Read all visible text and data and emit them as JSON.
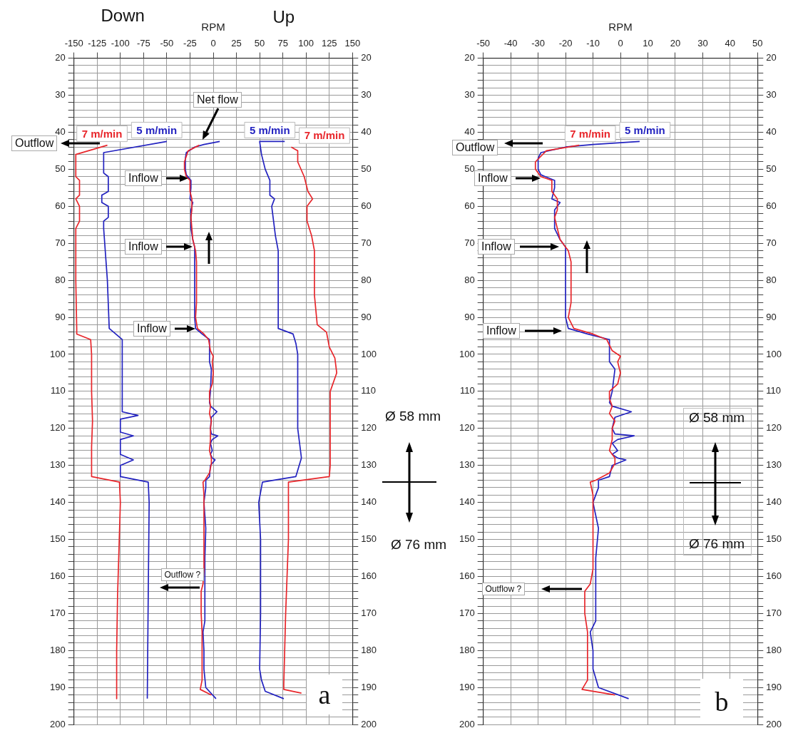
{
  "chart_data": [
    {
      "type": "line",
      "xlabel": "RPM",
      "xlim": [
        -150,
        150
      ],
      "xticks": [
        -150,
        -125,
        -100,
        -75,
        -50,
        -25,
        0,
        25,
        50,
        75,
        100,
        125,
        150
      ],
      "ylim": [
        200,
        20
      ],
      "yticks": [
        20,
        {
          "value": 22,
          "label": null
        },
        {
          "value": 24,
          "label": null
        },
        {
          "value": 26,
          "label": null
        },
        {
          "value": 28,
          "label": null
        },
        30,
        {
          "value": 32,
          "label": null
        },
        {
          "value": 34,
          "label": null
        },
        {
          "value": 36,
          "label": null
        },
        {
          "value": 38,
          "label": null
        },
        40,
        {
          "value": 42,
          "label": null
        },
        {
          "value": 44,
          "label": null
        },
        {
          "value": 46,
          "label": null
        },
        {
          "value": 48,
          "label": null
        },
        50,
        {
          "value": 52,
          "label": null
        },
        {
          "value": 54,
          "label": null
        },
        {
          "value": 56,
          "label": null
        },
        {
          "value": 58,
          "label": null
        },
        60,
        {
          "value": 62,
          "label": null
        },
        {
          "value": 64,
          "label": null
        },
        {
          "value": 66,
          "label": null
        },
        {
          "value": 68,
          "label": null
        },
        70,
        {
          "value": 72,
          "label": null
        },
        {
          "value": 74,
          "label": null
        },
        {
          "value": 76,
          "label": null
        },
        {
          "value": 78,
          "label": null
        },
        80,
        {
          "value": 82,
          "label": null
        },
        {
          "value": 84,
          "label": null
        },
        {
          "value": 86,
          "label": null
        },
        {
          "value": 88,
          "label": null
        },
        90,
        {
          "value": 92,
          "label": null
        },
        {
          "value": 94,
          "label": null
        },
        {
          "value": 96,
          "label": null
        },
        {
          "value": 98,
          "label": null
        },
        100,
        {
          "value": 102,
          "label": null
        },
        {
          "value": 104,
          "label": null
        },
        {
          "value": 106,
          "label": null
        },
        {
          "value": 108,
          "label": null
        },
        110,
        {
          "value": 112,
          "label": null
        },
        {
          "value": 114,
          "label": null
        },
        {
          "value": 116,
          "label": null
        },
        {
          "value": 118,
          "label": null
        },
        120,
        {
          "value": 122,
          "label": null
        },
        {
          "value": 124,
          "label": null
        },
        {
          "value": 126,
          "label": null
        },
        {
          "value": 128,
          "label": null
        },
        130,
        {
          "value": 132,
          "label": null
        },
        {
          "value": 134,
          "label": null
        },
        {
          "value": 136,
          "label": null
        },
        {
          "value": 138,
          "label": null
        },
        140,
        {
          "value": 142,
          "label": null
        },
        {
          "value": 144,
          "label": null
        },
        {
          "value": 146,
          "label": null
        },
        {
          "value": 148,
          "label": null
        },
        150,
        {
          "value": 152,
          "label": null
        },
        {
          "value": 154,
          "label": null
        },
        {
          "value": 156,
          "label": null
        },
        {
          "value": 158,
          "label": null
        },
        160,
        {
          "value": 162,
          "label": null
        },
        {
          "value": 164,
          "label": null
        },
        {
          "value": 166,
          "label": null
        },
        {
          "value": 168,
          "label": null
        },
        170,
        {
          "value": 172,
          "label": null
        },
        {
          "value": 174,
          "label": null
        },
        {
          "value": 176,
          "label": null
        },
        {
          "value": 178,
          "label": null
        },
        180,
        {
          "value": 182,
          "label": null
        },
        {
          "value": 184,
          "label": null
        },
        {
          "value": 186,
          "label": null
        },
        {
          "value": 188,
          "label": null
        },
        190,
        {
          "value": 192,
          "label": null
        },
        {
          "value": 194,
          "label": null
        },
        {
          "value": 196,
          "label": null
        },
        {
          "value": 198,
          "label": null
        },
        200
      ],
      "y2lim": [
        200,
        20
      ],
      "y2ticks": [
        20,
        {
          "value": 22,
          "label": null
        },
        {
          "value": 24,
          "label": null
        },
        {
          "value": 26,
          "label": null
        },
        {
          "value": 28,
          "label": null
        },
        30,
        {
          "value": 32,
          "label": null
        },
        {
          "value": 34,
          "label": null
        },
        {
          "value": 36,
          "label": null
        },
        {
          "value": 38,
          "label": null
        },
        40,
        {
          "value": 42,
          "label": null
        },
        {
          "value": 44,
          "label": null
        },
        {
          "value": 46,
          "label": null
        },
        {
          "value": 48,
          "label": null
        },
        50,
        {
          "value": 52,
          "label": null
        },
        {
          "value": 54,
          "label": null
        },
        {
          "value": 56,
          "label": null
        },
        {
          "value": 58,
          "label": null
        },
        60,
        {
          "value": 62,
          "label": null
        },
        {
          "value": 64,
          "label": null
        },
        {
          "value": 66,
          "label": null
        },
        {
          "value": 68,
          "label": null
        },
        70,
        {
          "value": 72,
          "label": null
        },
        {
          "value": 74,
          "label": null
        },
        {
          "value": 76,
          "label": null
        },
        {
          "value": 78,
          "label": null
        },
        80,
        {
          "value": 82,
          "label": null
        },
        {
          "value": 84,
          "label": null
        },
        {
          "value": 86,
          "label": null
        },
        {
          "value": 88,
          "label": null
        },
        90,
        {
          "value": 92,
          "label": null
        },
        {
          "value": 94,
          "label": null
        },
        {
          "value": 96,
          "label": null
        },
        {
          "value": 98,
          "label": null
        },
        100,
        {
          "value": 102,
          "label": null
        },
        {
          "value": 104,
          "label": null
        },
        {
          "value": 106,
          "label": null
        },
        {
          "value": 108,
          "label": null
        },
        110,
        {
          "value": 112,
          "label": null
        },
        {
          "value": 114,
          "label": null
        },
        {
          "value": 116,
          "label": null
        },
        {
          "value": 118,
          "label": null
        },
        120,
        {
          "value": 122,
          "label": null
        },
        {
          "value": 124,
          "label": null
        },
        {
          "value": 126,
          "label": null
        },
        {
          "value": 128,
          "label": null
        },
        130,
        {
          "value": 132,
          "label": null
        },
        {
          "value": 134,
          "label": null
        },
        {
          "value": 136,
          "label": null
        },
        {
          "value": 138,
          "label": null
        },
        140,
        {
          "value": 142,
          "label": null
        },
        {
          "value": 144,
          "label": null
        },
        {
          "value": 146,
          "label": null
        },
        {
          "value": 148,
          "label": null
        },
        150,
        {
          "value": 152,
          "label": null
        },
        {
          "value": 154,
          "label": null
        },
        {
          "value": 156,
          "label": null
        },
        {
          "value": 158,
          "label": null
        },
        160,
        {
          "value": 162,
          "label": null
        },
        {
          "value": 164,
          "label": null
        },
        {
          "value": 166,
          "label": null
        },
        {
          "value": 168,
          "label": null
        },
        170,
        {
          "value": 172,
          "label": null
        },
        {
          "value": 174,
          "label": null
        },
        {
          "value": 176,
          "label": null
        },
        {
          "value": 178,
          "label": null
        },
        180,
        {
          "value": 182,
          "label": null
        },
        {
          "value": 184,
          "label": null
        },
        {
          "value": 186,
          "label": null
        },
        {
          "value": 188,
          "label": null
        },
        190,
        {
          "value": 192,
          "label": null
        },
        {
          "value": 194,
          "label": null
        },
        {
          "value": 196,
          "label": null
        },
        {
          "value": 198,
          "label": null
        },
        200
      ],
      "grid": true,
      "series": [
        {
          "name": "7 m/min",
          "color": "#e8262b",
          "x": [
            -114,
            -148,
            -148,
            -144,
            -144,
            -148,
            -144,
            -144,
            -148,
            -148,
            -147,
            -147,
            -132,
            -131,
            -131,
            -130,
            -131,
            -131,
            -101,
            -100,
            -103,
            -104,
            -104
          ],
          "values": [
            43.5,
            46,
            52,
            53,
            57,
            58,
            60,
            64,
            66,
            80,
            93,
            94.5,
            96,
            100,
            110,
            118,
            125,
            133,
            134.5,
            140,
            165,
            180,
            193
          ]
        },
        {
          "name": "5 m/min",
          "color": "#2323c0",
          "x": [
            -50,
            -118,
            -118,
            -113,
            -113,
            -120,
            -120,
            -113,
            -113,
            -118,
            -118,
            -114,
            -112,
            -98,
            -98,
            -81,
            -100,
            -100,
            -86,
            -100,
            -100,
            -86,
            -100,
            -100,
            -70,
            -69,
            -70,
            -71
          ],
          "values": [
            42.5,
            45.5,
            51,
            52,
            56,
            57,
            59,
            60,
            63,
            64,
            66,
            80,
            93,
            96,
            115.5,
            116.5,
            117.5,
            121,
            122,
            123,
            127,
            128.5,
            130,
            133,
            134.5,
            140,
            165,
            193
          ]
        },
        {
          "color": "#e8262b",
          "x": [
            -15,
            -27,
            -31,
            -31,
            -29,
            -25,
            -25,
            -23,
            -23,
            -24,
            -23,
            -22,
            -20,
            -19,
            -18,
            -18,
            -19,
            -17,
            -10,
            -5,
            -3,
            0,
            -1,
            0,
            -1,
            -4,
            -4,
            -3,
            -4,
            -2,
            -3,
            -3,
            -4,
            -2,
            -2,
            -4,
            -9,
            -11,
            -10,
            -10,
            -11,
            -13,
            -13,
            -12,
            -12,
            -14,
            -2
          ],
          "values": [
            43.5,
            45,
            48,
            50,
            52,
            53,
            56,
            58,
            61,
            63,
            66,
            69,
            71,
            72,
            75,
            86,
            90,
            93,
            94.5,
            96,
            99,
            100.5,
            102,
            105,
            108,
            110,
            112,
            114,
            116,
            118,
            120,
            123,
            126,
            128,
            129.5,
            132,
            134,
            134.5,
            138,
            158,
            162,
            164,
            170,
            175,
            188,
            190.5,
            192
          ]
        },
        {
          "color": "#2323c0",
          "x": [
            7,
            -10,
            -20,
            -29,
            -30,
            -30,
            -29,
            -24,
            -24,
            -25,
            -22,
            -24,
            -24,
            -22,
            -20,
            -20,
            -19,
            -12,
            -4,
            -4,
            -2,
            -3,
            -4,
            -3,
            4,
            -2,
            -3,
            -2,
            5,
            -1,
            -3,
            -1,
            -3,
            -1,
            2,
            -3,
            -4,
            -8,
            -8,
            -10,
            -8,
            -9,
            -9,
            -11,
            -10,
            -10,
            -8,
            3
          ],
          "values": [
            42.5,
            43.3,
            44,
            45.5,
            47,
            50,
            51.5,
            53,
            55,
            58,
            59,
            61,
            66,
            69,
            71,
            90,
            93,
            94.5,
            96,
            102,
            104,
            110,
            113,
            114,
            115.5,
            117,
            120,
            121.5,
            122,
            123,
            124,
            126,
            127,
            128,
            128.5,
            130,
            133,
            134,
            136,
            140,
            147,
            155,
            172,
            175,
            180,
            185,
            190,
            193
          ]
        },
        {
          "name": "5 m/min",
          "color": "#2323c0",
          "x": [
            77,
            50,
            52,
            56,
            61,
            61,
            66,
            63,
            65,
            67,
            70,
            70,
            86,
            89,
            91,
            91,
            95,
            89,
            53,
            49,
            51,
            51,
            50,
            52,
            56,
            76
          ],
          "values": [
            42.5,
            42.5,
            46,
            50,
            53,
            57,
            58,
            60,
            64,
            68,
            72,
            93,
            94.5,
            97,
            100,
            120,
            128,
            133,
            134.5,
            140,
            150,
            170,
            185,
            188,
            191,
            193
          ]
        },
        {
          "name": "7 m/min",
          "color": "#e8262b",
          "x": [
            84,
            91,
            91,
            98,
            102,
            107,
            101,
            101,
            106,
            109,
            109,
            112,
            122,
            125,
            131,
            133,
            126,
            126,
            125,
            81,
            81,
            78,
            76,
            76,
            95
          ],
          "values": [
            44,
            45,
            48,
            52,
            56,
            58,
            60,
            64,
            68,
            72,
            84,
            92,
            94,
            98,
            101,
            105,
            110,
            130,
            133,
            134.5,
            150,
            170,
            189,
            190.5,
            191.5
          ]
        }
      ],
      "annotations": [
        "Down",
        "Up",
        "Net flow",
        "Outflow",
        "Inflow",
        "Inflow",
        "Inflow",
        "Outflow ?",
        "Ø 58 mm",
        "Ø 76 mm",
        "a"
      ]
    },
    {
      "type": "line",
      "xlabel": "RPM",
      "xlim": [
        -50,
        50
      ],
      "xticks": [
        -50,
        -40,
        -30,
        -20,
        -10,
        0,
        10,
        20,
        30,
        40,
        50
      ],
      "ylim": [
        200,
        20
      ],
      "yticks": [
        20,
        {
          "value": 22,
          "label": null
        },
        {
          "value": 24,
          "label": null
        },
        {
          "value": 26,
          "label": null
        },
        {
          "value": 28,
          "label": null
        },
        30,
        {
          "value": 32,
          "label": null
        },
        {
          "value": 34,
          "label": null
        },
        {
          "value": 36,
          "label": null
        },
        {
          "value": 38,
          "label": null
        },
        40,
        {
          "value": 42,
          "label": null
        },
        {
          "value": 44,
          "label": null
        },
        {
          "value": 46,
          "label": null
        },
        {
          "value": 48,
          "label": null
        },
        50,
        {
          "value": 52,
          "label": null
        },
        {
          "value": 54,
          "label": null
        },
        {
          "value": 56,
          "label": null
        },
        {
          "value": 58,
          "label": null
        },
        60,
        {
          "value": 62,
          "label": null
        },
        {
          "value": 64,
          "label": null
        },
        {
          "value": 66,
          "label": null
        },
        {
          "value": 68,
          "label": null
        },
        70,
        {
          "value": 72,
          "label": null
        },
        {
          "value": 74,
          "label": null
        },
        {
          "value": 76,
          "label": null
        },
        {
          "value": 78,
          "label": null
        },
        80,
        {
          "value": 82,
          "label": null
        },
        {
          "value": 84,
          "label": null
        },
        {
          "value": 86,
          "label": null
        },
        {
          "value": 88,
          "label": null
        },
        90,
        {
          "value": 92,
          "label": null
        },
        {
          "value": 94,
          "label": null
        },
        {
          "value": 96,
          "label": null
        },
        {
          "value": 98,
          "label": null
        },
        100,
        {
          "value": 102,
          "label": null
        },
        {
          "value": 104,
          "label": null
        },
        {
          "value": 106,
          "label": null
        },
        {
          "value": 108,
          "label": null
        },
        110,
        {
          "value": 112,
          "label": null
        },
        {
          "value": 114,
          "label": null
        },
        {
          "value": 116,
          "label": null
        },
        {
          "value": 118,
          "label": null
        },
        120,
        {
          "value": 122,
          "label": null
        },
        {
          "value": 124,
          "label": null
        },
        {
          "value": 126,
          "label": null
        },
        {
          "value": 128,
          "label": null
        },
        130,
        {
          "value": 132,
          "label": null
        },
        {
          "value": 134,
          "label": null
        },
        {
          "value": 136,
          "label": null
        },
        {
          "value": 138,
          "label": null
        },
        140,
        {
          "value": 142,
          "label": null
        },
        {
          "value": 144,
          "label": null
        },
        {
          "value": 146,
          "label": null
        },
        {
          "value": 148,
          "label": null
        },
        150,
        {
          "value": 152,
          "label": null
        },
        {
          "value": 154,
          "label": null
        },
        {
          "value": 156,
          "label": null
        },
        {
          "value": 158,
          "label": null
        },
        160,
        {
          "value": 162,
          "label": null
        },
        {
          "value": 164,
          "label": null
        },
        {
          "value": 166,
          "label": null
        },
        {
          "value": 168,
          "label": null
        },
        170,
        {
          "value": 172,
          "label": null
        },
        {
          "value": 174,
          "label": null
        },
        {
          "value": 176,
          "label": null
        },
        {
          "value": 178,
          "label": null
        },
        180,
        {
          "value": 182,
          "label": null
        },
        {
          "value": 184,
          "label": null
        },
        {
          "value": 186,
          "label": null
        },
        {
          "value": 188,
          "label": null
        },
        190,
        {
          "value": 192,
          "label": null
        },
        {
          "value": 194,
          "label": null
        },
        {
          "value": 196,
          "label": null
        },
        {
          "value": 198,
          "label": null
        },
        200
      ],
      "y2lim": [
        200,
        20
      ],
      "y2ticks": [
        20,
        {
          "value": 22,
          "label": null
        },
        {
          "value": 24,
          "label": null
        },
        {
          "value": 26,
          "label": null
        },
        {
          "value": 28,
          "label": null
        },
        30,
        {
          "value": 32,
          "label": null
        },
        {
          "value": 34,
          "label": null
        },
        {
          "value": 36,
          "label": null
        },
        {
          "value": 38,
          "label": null
        },
        40,
        {
          "value": 42,
          "label": null
        },
        {
          "value": 44,
          "label": null
        },
        {
          "value": 46,
          "label": null
        },
        {
          "value": 48,
          "label": null
        },
        50,
        {
          "value": 52,
          "label": null
        },
        {
          "value": 54,
          "label": null
        },
        {
          "value": 56,
          "label": null
        },
        {
          "value": 58,
          "label": null
        },
        60,
        {
          "value": 62,
          "label": null
        },
        {
          "value": 64,
          "label": null
        },
        {
          "value": 66,
          "label": null
        },
        {
          "value": 68,
          "label": null
        },
        70,
        {
          "value": 72,
          "label": null
        },
        {
          "value": 74,
          "label": null
        },
        {
          "value": 76,
          "label": null
        },
        {
          "value": 78,
          "label": null
        },
        80,
        {
          "value": 82,
          "label": null
        },
        {
          "value": 84,
          "label": null
        },
        {
          "value": 86,
          "label": null
        },
        {
          "value": 88,
          "label": null
        },
        90,
        {
          "value": 92,
          "label": null
        },
        {
          "value": 94,
          "label": null
        },
        {
          "value": 96,
          "label": null
        },
        {
          "value": 98,
          "label": null
        },
        100,
        {
          "value": 102,
          "label": null
        },
        {
          "value": 104,
          "label": null
        },
        {
          "value": 106,
          "label": null
        },
        {
          "value": 108,
          "label": null
        },
        110,
        {
          "value": 112,
          "label": null
        },
        {
          "value": 114,
          "label": null
        },
        {
          "value": 116,
          "label": null
        },
        {
          "value": 118,
          "label": null
        },
        120,
        {
          "value": 122,
          "label": null
        },
        {
          "value": 124,
          "label": null
        },
        {
          "value": 126,
          "label": null
        },
        {
          "value": 128,
          "label": null
        },
        130,
        {
          "value": 132,
          "label": null
        },
        {
          "value": 134,
          "label": null
        },
        {
          "value": 136,
          "label": null
        },
        {
          "value": 138,
          "label": null
        },
        140,
        {
          "value": 142,
          "label": null
        },
        {
          "value": 144,
          "label": null
        },
        {
          "value": 146,
          "label": null
        },
        {
          "value": 148,
          "label": null
        },
        150,
        {
          "value": 152,
          "label": null
        },
        {
          "value": 154,
          "label": null
        },
        {
          "value": 156,
          "label": null
        },
        {
          "value": 158,
          "label": null
        },
        160,
        {
          "value": 162,
          "label": null
        },
        {
          "value": 164,
          "label": null
        },
        {
          "value": 166,
          "label": null
        },
        {
          "value": 168,
          "label": null
        },
        170,
        {
          "value": 172,
          "label": null
        },
        {
          "value": 174,
          "label": null
        },
        {
          "value": 176,
          "label": null
        },
        {
          "value": 178,
          "label": null
        },
        180,
        {
          "value": 182,
          "label": null
        },
        {
          "value": 184,
          "label": null
        },
        {
          "value": 186,
          "label": null
        },
        {
          "value": 188,
          "label": null
        },
        190,
        {
          "value": 192,
          "label": null
        },
        {
          "value": 194,
          "label": null
        },
        {
          "value": 196,
          "label": null
        },
        {
          "value": 198,
          "label": null
        },
        200
      ],
      "grid": true,
      "series": [
        {
          "name": "7 m/min",
          "color": "#e8262b",
          "x": [
            -15,
            -27,
            -31,
            -31,
            -29,
            -25,
            -25,
            -23,
            -23,
            -24,
            -23,
            -22,
            -20,
            -19,
            -18,
            -18,
            -19,
            -17,
            -10,
            -5,
            -3,
            0,
            -1,
            0,
            -1,
            -4,
            -4,
            -3,
            -4,
            -2,
            -3,
            -3,
            -4,
            -2,
            -2,
            -4,
            -9,
            -11,
            -10,
            -10,
            -11,
            -13,
            -13,
            -12,
            -12,
            -14,
            -2
          ],
          "values": [
            43.5,
            45,
            48,
            50,
            52,
            53,
            56,
            58,
            61,
            63,
            66,
            69,
            71,
            72,
            75,
            86,
            90,
            93,
            94.5,
            96,
            99,
            100.5,
            102,
            105,
            108,
            110,
            112,
            114,
            116,
            118,
            120,
            123,
            126,
            128,
            129.5,
            132,
            134,
            134.5,
            138,
            158,
            162,
            164,
            170,
            175,
            188,
            190.5,
            192
          ]
        },
        {
          "name": "5 m/min",
          "color": "#2323c0",
          "x": [
            7,
            -10,
            -20,
            -29,
            -30,
            -30,
            -29,
            -24,
            -24,
            -25,
            -22,
            -24,
            -24,
            -22,
            -20,
            -20,
            -19,
            -12,
            -4,
            -4,
            -2,
            -3,
            -4,
            -3,
            4,
            -2,
            -3,
            -2,
            5,
            -1,
            -3,
            -1,
            -3,
            -1,
            2,
            -3,
            -4,
            -8,
            -8,
            -10,
            -8,
            -9,
            -9,
            -11,
            -10,
            -10,
            -8,
            3
          ],
          "values": [
            42.5,
            43.3,
            44,
            45.5,
            47,
            50,
            51.5,
            53,
            55,
            58,
            59,
            61,
            66,
            69,
            71,
            90,
            93,
            94.5,
            96,
            102,
            104,
            110,
            113,
            114,
            115.5,
            117,
            120,
            121.5,
            122,
            123,
            124,
            126,
            127,
            128,
            128.5,
            130,
            133,
            134,
            136,
            140,
            147,
            155,
            172,
            175,
            180,
            185,
            190,
            193
          ]
        }
      ],
      "annotations": [
        "Outflow",
        "Inflow",
        "Inflow",
        "Inflow",
        "Outflow ?",
        "Ø 58 mm",
        "Ø 76 mm",
        "b"
      ]
    }
  ]
}
